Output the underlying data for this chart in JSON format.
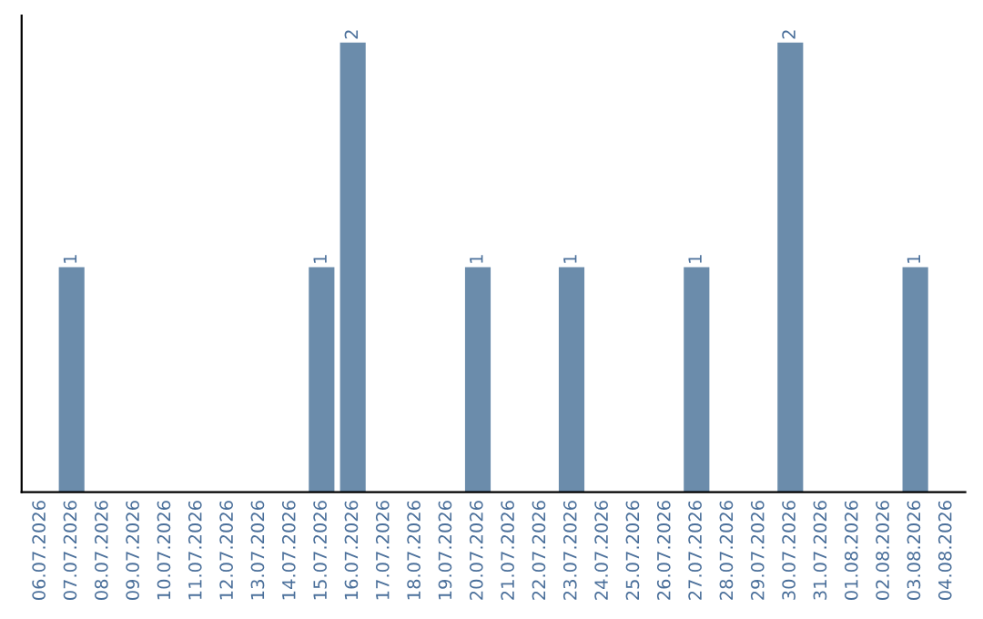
{
  "chart_data": {
    "type": "bar",
    "categories": [
      "06.07.2026",
      "07.07.2026",
      "08.07.2026",
      "09.07.2026",
      "10.07.2026",
      "11.07.2026",
      "12.07.2026",
      "13.07.2026",
      "14.07.2026",
      "15.07.2026",
      "16.07.2026",
      "17.07.2026",
      "18.07.2026",
      "19.07.2026",
      "20.07.2026",
      "21.07.2026",
      "22.07.2026",
      "23.07.2026",
      "24.07.2026",
      "25.07.2026",
      "26.07.2026",
      "27.07.2026",
      "28.07.2026",
      "29.07.2026",
      "30.07.2026",
      "31.07.2026",
      "01.08.2026",
      "02.08.2026",
      "03.08.2026",
      "04.08.2026"
    ],
    "series": [
      {
        "color": "#6b8cab",
        "values": [
          null,
          1,
          null,
          null,
          null,
          null,
          null,
          null,
          null,
          1,
          2,
          null,
          null,
          null,
          1,
          null,
          null,
          1,
          null,
          null,
          null,
          1,
          null,
          null,
          2,
          null,
          null,
          null,
          1,
          null
        ]
      }
    ],
    "ylim": [
      0,
      2
    ],
    "data_labels": true,
    "grid": false,
    "legend": false
  }
}
